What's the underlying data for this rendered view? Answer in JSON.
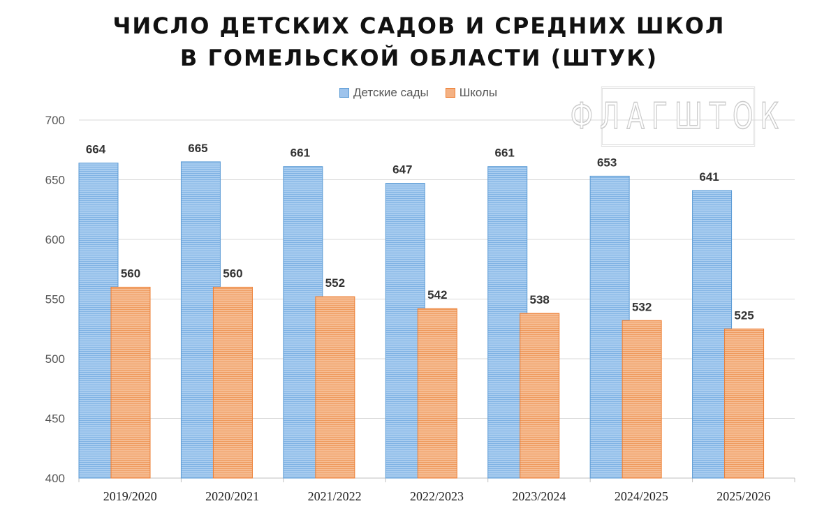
{
  "chart_data": {
    "type": "bar",
    "title_lines": [
      "ЧИСЛО ДЕТСКИХ САДОВ И СРЕДНИХ ШКОЛ",
      "В ГОМЕЛЬСКОЙ ОБЛАСТИ (ШТУК)"
    ],
    "categories": [
      "2019/2020",
      "2020/2021",
      "2021/2022",
      "2022/2023",
      "2023/2024",
      "2024/2025",
      "2025/2026"
    ],
    "series": [
      {
        "name": "Детские сады",
        "values": [
          664,
          665,
          661,
          647,
          661,
          653,
          641
        ],
        "color": "#9dc3ec",
        "stroke": "#5b9bd5"
      },
      {
        "name": "Школы",
        "values": [
          560,
          560,
          552,
          542,
          538,
          532,
          525
        ],
        "color": "#f4b183",
        "stroke": "#ed7d31"
      }
    ],
    "yticks": [
      400,
      450,
      500,
      550,
      600,
      650,
      700
    ],
    "ylim": [
      400,
      700
    ],
    "grid": true,
    "legend_position": "top",
    "xlabel": "",
    "ylabel": ""
  },
  "watermark": "ФЛАГШТОК"
}
